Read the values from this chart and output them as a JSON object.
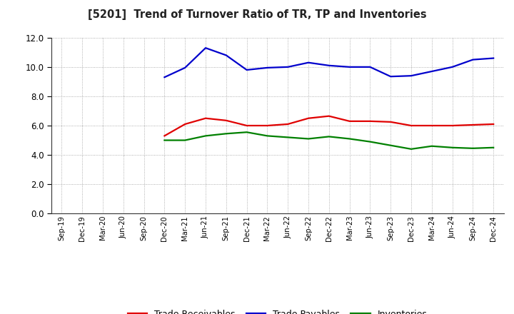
{
  "title": "[5201]  Trend of Turnover Ratio of TR, TP and Inventories",
  "x_labels": [
    "Sep-19",
    "Dec-19",
    "Mar-20",
    "Jun-20",
    "Sep-20",
    "Dec-20",
    "Mar-21",
    "Jun-21",
    "Sep-21",
    "Dec-21",
    "Mar-22",
    "Jun-22",
    "Sep-22",
    "Dec-22",
    "Mar-23",
    "Jun-23",
    "Sep-23",
    "Dec-23",
    "Mar-24",
    "Jun-24",
    "Sep-24",
    "Dec-24"
  ],
  "trade_receivables": [
    null,
    null,
    null,
    null,
    null,
    5.3,
    6.1,
    6.5,
    6.35,
    6.0,
    6.0,
    6.1,
    6.5,
    6.65,
    6.3,
    6.3,
    6.25,
    6.0,
    6.0,
    6.0,
    6.05,
    6.1
  ],
  "trade_payables": [
    null,
    null,
    null,
    null,
    null,
    9.3,
    9.95,
    11.3,
    10.8,
    9.8,
    9.95,
    10.0,
    10.3,
    10.1,
    10.0,
    10.0,
    9.35,
    9.4,
    9.7,
    10.0,
    10.5,
    10.6
  ],
  "inventories": [
    null,
    null,
    null,
    null,
    null,
    5.0,
    5.0,
    5.3,
    5.45,
    5.55,
    5.3,
    5.2,
    5.1,
    5.25,
    5.1,
    4.9,
    4.65,
    4.4,
    4.6,
    4.5,
    4.45,
    4.5
  ],
  "ylim": [
    0.0,
    12.0
  ],
  "yticks": [
    0.0,
    2.0,
    4.0,
    6.0,
    8.0,
    10.0,
    12.0
  ],
  "line_colors": {
    "trade_receivables": "#e00000",
    "trade_payables": "#0000cc",
    "inventories": "#008000"
  },
  "legend_labels": [
    "Trade Receivables",
    "Trade Payables",
    "Inventories"
  ]
}
